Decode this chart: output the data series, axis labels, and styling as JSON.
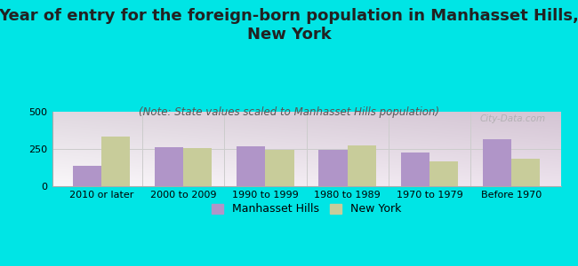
{
  "title": "Year of entry for the foreign-born population in Manhasset Hills,\nNew York",
  "subtitle": "(Note: State values scaled to Manhasset Hills population)",
  "categories": [
    "2010 or later",
    "2000 to 2009",
    "1990 to 1999",
    "1980 to 1989",
    "1970 to 1979",
    "Before 1970"
  ],
  "manhasset_hills": [
    135,
    262,
    270,
    245,
    228,
    315
  ],
  "new_york": [
    335,
    255,
    247,
    275,
    168,
    185
  ],
  "manhasset_color": "#b095c8",
  "ny_color": "#c8cc9a",
  "background_color": "#00e5e5",
  "ylim": [
    0,
    500
  ],
  "yticks": [
    0,
    250,
    500
  ],
  "bar_width": 0.35,
  "title_fontsize": 13,
  "subtitle_fontsize": 8.5,
  "axis_label_fontsize": 8,
  "legend_fontsize": 9,
  "watermark": "City-Data.com"
}
